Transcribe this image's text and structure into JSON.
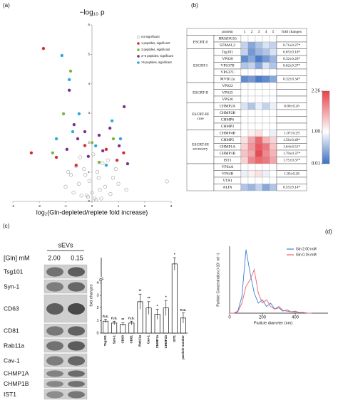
{
  "panel_labels": [
    "(a)",
    "(b)",
    "(c)",
    "(d)"
  ],
  "chart_data": [
    {
      "type": "scatter",
      "title": "−log₁₀ p",
      "x_label": "log₂(Gln-depleted/replete fold increase)",
      "xlim": [
        -3,
        3
      ],
      "xticks": [
        -3,
        -2,
        -1,
        0,
        1,
        2,
        3
      ],
      "ylim": [
        0,
        6
      ],
      "yticks": [
        0,
        1,
        2,
        3,
        4,
        5,
        6
      ],
      "grid": false,
      "series": [
        {
          "name": "not significant",
          "color": "#aaaaaa",
          "marker": "open",
          "x": [
            -0.2,
            0.1,
            0.3,
            -0.5,
            0.5,
            -0.8,
            0.8,
            0,
            -0.3,
            0.2,
            -0.1,
            0.4,
            -0.6,
            0.6,
            -1.0,
            1.0,
            -0.4,
            0.15,
            -0.15,
            0.05,
            -0.7,
            0.7,
            0.25,
            -0.25,
            0.35,
            -0.45,
            0.9,
            -0.9,
            1.3,
            2.84
          ],
          "y": [
            0.2,
            0.1,
            0.4,
            0.6,
            0.5,
            0.9,
            0.8,
            0.3,
            1.1,
            1.0,
            0.7,
            1.3,
            1.2,
            1.4,
            0.5,
            0.6,
            0.2,
            0.05,
            0.15,
            1.6,
            0.3,
            0.25,
            0.8,
            0.9,
            0.1,
            1.5,
            1.1,
            1.0,
            0.4,
            0.68
          ]
        },
        {
          "name": "1 peptides, significant",
          "color": "#d62a2a",
          "marker": "filled",
          "x": [
            -1.84,
            -2.3,
            -0.27,
            0.54,
            0.95,
            -0.6,
            1.2,
            -1.35
          ],
          "y": [
            5.2,
            1.65,
            1.9,
            1.77,
            1.4,
            1.23,
            1.65,
            1.5
          ]
        },
        {
          "name": "2 peptides, significant",
          "color": "#7cb342",
          "marker": "filled",
          "x": [
            -0.81,
            -1.08,
            0,
            0.81,
            0.27,
            -1.49
          ],
          "y": [
            4.43,
            2.98,
            2.0,
            2.13,
            1.33,
            1.65
          ]
        },
        {
          "name": "3~5 peptides, significant",
          "color": "#7b2d8e",
          "marker": "filled",
          "x": [
            -0.86,
            1.22,
            -0.68,
            -0.27,
            0.68,
            -0.54,
            0.27,
            -0.95,
            1.03,
            -0.14,
            0.41,
            1.35
          ],
          "y": [
            3.78,
            3.22,
            2.61,
            2.37,
            2.49,
            2.13,
            2.25,
            1.77,
            1.89,
            1.53,
            1.72,
            1.28
          ]
        },
        {
          "name": ">5 peptides, significant",
          "color": "#29a9d6",
          "marker": "filled",
          "x": [
            -1.14,
            -0.86,
            -0.49,
            -0.73,
            0.76,
            0.14,
            1.08,
            -1.35,
            0.54
          ],
          "y": [
            4.96,
            4.14,
            2.98,
            2.37,
            2.74,
            1.89,
            2.13,
            2.13,
            1.23
          ]
        }
      ]
    },
    {
      "type": "bar",
      "y_label": "fold changes",
      "color": "#ffffff",
      "edge_color": "#111111",
      "categories": [
        "Tsg101",
        "Syn-1",
        "CD63",
        "CD81",
        "Rab11a",
        "Cav-1",
        "CHMP1a",
        "CHMP1b",
        "IST1",
        "particle number"
      ],
      "values": [
        0.95,
        0.8,
        0.7,
        0.8,
        2.5,
        2.0,
        1.5,
        2.0,
        5.5,
        1.2
      ],
      "errors": [
        0.15,
        0.15,
        0.12,
        0.15,
        0.6,
        0.5,
        0.4,
        0.6,
        0.5,
        0.4
      ],
      "annotations": [
        "n.s.",
        "n.s.",
        "**",
        "n.s.",
        "**",
        "**",
        "*",
        "*",
        "*",
        "n.s."
      ],
      "annotation_colors": [
        "#111111",
        "#111111",
        "#3b4fc4",
        "#111111",
        "#e02020",
        "#e02020",
        "#e02020",
        "#e02020",
        "#e02020",
        "#111111"
      ],
      "ylim": [
        0,
        6
      ],
      "yticks": [
        0,
        1,
        2,
        3,
        4
      ]
    },
    {
      "type": "line",
      "x_label": "Particle diameter (nm)",
      "y_label": "Particle Concentration (×10⁷ ml⁻¹)",
      "x": [
        0,
        25,
        50,
        75,
        100,
        125,
        150,
        175,
        200,
        225,
        250,
        275,
        300,
        325,
        350,
        375,
        400,
        425,
        450,
        475,
        500
      ],
      "xlim": [
        0,
        600
      ],
      "xticks": [
        0,
        200,
        400
      ],
      "ylim": [
        0,
        10
      ],
      "series": [
        {
          "name": "Gln 2.00 mM",
          "color": "#3b7fd8",
          "values": [
            0,
            0,
            0.3,
            2.5,
            9.5,
            6,
            3,
            1.5,
            2,
            1,
            1.5,
            0.6,
            0.8,
            0.3,
            0.5,
            0.2,
            0.2,
            0.1,
            0.1,
            0,
            0
          ]
        },
        {
          "name": "Gln 0.15 mM",
          "color": "#e8606a",
          "values": [
            0,
            0,
            0.2,
            1.5,
            4,
            5,
            6.5,
            3,
            1.5,
            2,
            1,
            0.6,
            1,
            0.4,
            0.3,
            0.2,
            0.3,
            0.1,
            0.1,
            0,
            0
          ]
        }
      ]
    }
  ],
  "heatmap": {
    "header": [
      "protein",
      "1",
      "2",
      "3",
      "4",
      "5",
      "fold changes"
    ],
    "lim": [
      0.01,
      2.26
    ],
    "colors": [
      "#3b6fc4",
      "#ffffff",
      "#e8424a"
    ],
    "ticks": [
      2.26,
      {
        "value": 1,
        "label": "1.00"
      },
      0.01
    ],
    "groups": [
      {
        "label": [
          "ESCRT-0"
        ],
        "rows": [
          {
            "protein": "HRS(HGS)",
            "values": [
              null,
              null,
              null,
              null,
              null
            ]
          },
          {
            "protein": "STAM1,2",
            "values": [
              0.7,
              0.4,
              0.6,
              0.8,
              0.7
            ],
            "fold": "0.71±0.27*"
          }
        ]
      },
      {
        "label": [
          "ESCRT-I"
        ],
        "rows": [
          {
            "protein": "Tsg101",
            "values": [
              0.7,
              0.3,
              0.5,
              0.6,
              0.8
            ],
            "fold": "0.65±0.16*"
          },
          {
            "protein": "VPS28",
            "values": [
              0.2,
              0.4,
              0.1,
              0.3,
              0.5
            ],
            "fold": "0.32±0.26*"
          },
          {
            "protein": "VPS37B",
            "values": [
              0.6,
              0.7,
              0.4,
              0.8,
              0.6
            ],
            "fold": "0.62±0.37*"
          },
          {
            "protein": "VPS37C",
            "values": [
              null,
              null,
              null,
              null,
              null
            ]
          },
          {
            "protein": "MVB12a",
            "values": [
              0.2,
              0.3,
              0.1,
              0.2,
              0.4
            ],
            "fold": "0.32±0.34*"
          }
        ]
      },
      {
        "label": [
          "ESCRT-II"
        ],
        "rows": [
          {
            "protein": "VPS22",
            "values": [
              null,
              null,
              null,
              null,
              null
            ]
          },
          {
            "protein": "VPS25",
            "values": [
              null,
              null,
              null,
              null,
              null
            ]
          },
          {
            "protein": "VPS36",
            "values": [
              null,
              null,
              null,
              null,
              null
            ]
          }
        ]
      },
      {
        "label": [
          "ESCRT-III",
          "core"
        ],
        "rows": [
          {
            "protein": "CHMP2A",
            "values": [
              0.8,
              0.6,
              0.9,
              0.7,
              0.9
            ],
            "fold": "0.80±0.26"
          },
          {
            "protein": "CHMP2B",
            "values": [
              null,
              null,
              null,
              null,
              null
            ]
          },
          {
            "protein": "CHMP6",
            "values": [
              null,
              null,
              null,
              null,
              null
            ]
          },
          {
            "protein": "CHMP3",
            "values": [
              null,
              null,
              null,
              null,
              null
            ]
          }
        ]
      },
      {
        "label": [
          "ESCRT-III",
          "accessory"
        ],
        "rows": [
          {
            "protein": "CHMP4B",
            "values": [
              1.0,
              1.1,
              1.2,
              1.0,
              0.9
            ],
            "fold": "1.07±0.29"
          },
          {
            "protein": "CHMP5",
            "values": [
              1.2,
              1.6,
              2.0,
              1.5,
              1.3
            ],
            "fold": "1.56±0.49*"
          },
          {
            "protein": "CHMP1A",
            "values": [
              1.3,
              1.7,
              2.1,
              1.9,
              1.4
            ],
            "fold": "1.64±0.51*"
          },
          {
            "protein": "CHMP1B",
            "values": [
              1.4,
              1.6,
              2.2,
              1.8,
              1.5
            ],
            "fold": "1.70±0.37*"
          },
          {
            "protein": "IST1",
            "values": [
              1.3,
              1.8,
              2.0,
              1.9,
              1.6
            ],
            "fold": "1.75±0.37*"
          }
        ]
      },
      {
        "label": [],
        "rows": [
          {
            "protein": "VPS4A",
            "values": [
              null,
              null,
              null,
              null,
              null
            ]
          },
          {
            "protein": "VPS4B",
            "values": [
              0.9,
              1.1,
              1.2,
              0.9,
              1.0
            ],
            "fold": "1.03±0.28"
          },
          {
            "protein": "VTA1",
            "values": [
              null,
              null,
              null,
              null,
              null
            ]
          },
          {
            "protein": "ALIX",
            "values": [
              0.6,
              0.5,
              0.7,
              0.4,
              0.6
            ],
            "fold": "0.55±0.14*"
          }
        ]
      }
    ]
  },
  "blot": {
    "title": "sEVs",
    "condition_label": "[Gln] mM",
    "conditions": [
      "2.00",
      "0.15"
    ],
    "proteins": [
      "Tsg101",
      "Syn-1",
      "CD63",
      "CD81",
      "Rab11a",
      "Cav-1",
      "CHMP1A",
      "CHMP1B",
      "IST1"
    ]
  }
}
